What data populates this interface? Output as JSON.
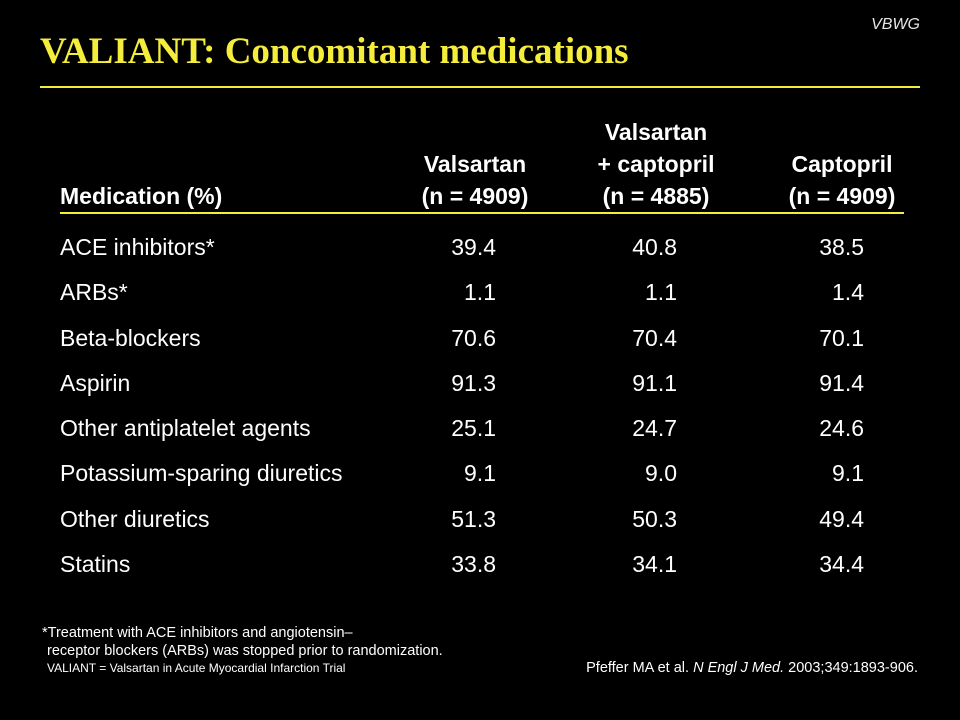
{
  "brand": "VBWG",
  "title": "VALIANT: Concomitant medications",
  "table": {
    "header": {
      "medication": "Medication (%)",
      "columns": [
        {
          "name": "Valsartan",
          "n": "(n = 4909)"
        },
        {
          "name_line1": "Valsartan",
          "name": "+ captopril",
          "n": "(n = 4885)"
        },
        {
          "name": "Captopril",
          "n": "(n = 4909)"
        }
      ]
    },
    "rows": [
      {
        "medication": "ACE inhibitors*",
        "valsartan": "39.4",
        "combination": "40.8",
        "captopril": "38.5"
      },
      {
        "medication": "ARBs*",
        "valsartan": "1.1",
        "combination": "1.1",
        "captopril": "1.4"
      },
      {
        "medication": "Beta-blockers",
        "valsartan": "70.6",
        "combination": "70.4",
        "captopril": "70.1"
      },
      {
        "medication": "Aspirin",
        "valsartan": "91.3",
        "combination": "91.1",
        "captopril": "91.4"
      },
      {
        "medication": "Other antiplatelet agents",
        "valsartan": "25.1",
        "combination": "24.7",
        "captopril": "24.6"
      },
      {
        "medication": "Potassium-sparing diuretics",
        "valsartan": "9.1",
        "combination": "9.0",
        "captopril": "9.1"
      },
      {
        "medication": "Other diuretics",
        "valsartan": "51.3",
        "combination": "50.3",
        "captopril": "49.4"
      },
      {
        "medication": "Statins",
        "valsartan": "33.8",
        "combination": "34.1",
        "captopril": "34.4"
      }
    ]
  },
  "footnote": {
    "line1": "*Treatment with ACE inhibitors and angiotensin–",
    "line2": "receptor blockers (ARBs) was stopped prior to randomization.",
    "line3": "VALIANT = Valsartan in Acute Myocardial Infarction Trial"
  },
  "citation": {
    "authors": "Pfeffer MA et al.",
    "journal": "N Engl J Med.",
    "details": "2003;349:1893-906."
  },
  "colors": {
    "background": "#000000",
    "accent": "#f4ed3c",
    "text": "#ffffff"
  }
}
